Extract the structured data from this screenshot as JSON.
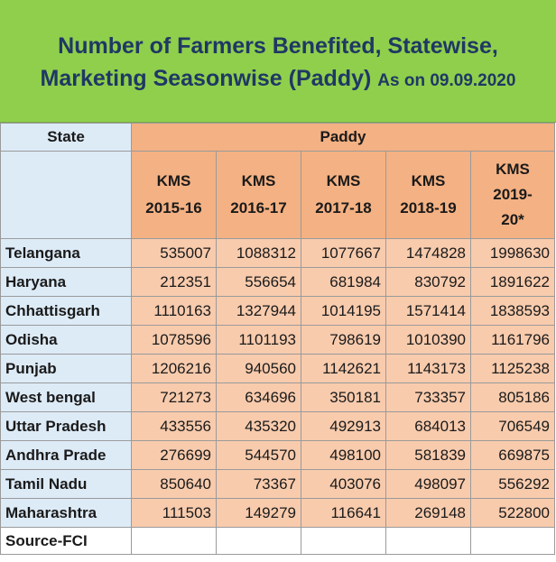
{
  "title": {
    "line1": "Number of Farmers Benefited, Statewise,",
    "line2": "Marketing Seasonwise (Paddy)",
    "as_on": "As on 09.09.2020"
  },
  "table": {
    "state_header": "State",
    "group_header": "Paddy",
    "seasons": [
      "KMS 2015-16",
      "KMS 2016-17",
      "KMS 2017-18",
      "KMS 2018-19",
      "KMS 2019-20*"
    ],
    "rows": [
      {
        "state": "Telangana",
        "values": [
          "535007",
          "1088312",
          "1077667",
          "1474828",
          "1998630"
        ]
      },
      {
        "state": "Haryana",
        "values": [
          "212351",
          "556654",
          "681984",
          "830792",
          "1891622"
        ]
      },
      {
        "state": "Chhattisgarh",
        "values": [
          "1110163",
          "1327944",
          "1014195",
          "1571414",
          "1838593"
        ]
      },
      {
        "state": "Odisha",
        "values": [
          "1078596",
          "1101193",
          "798619",
          "1010390",
          "1161796"
        ]
      },
      {
        "state": "Punjab",
        "values": [
          "1206216",
          "940560",
          "1142621",
          "1143173",
          "1125238"
        ]
      },
      {
        "state": "West bengal",
        "values": [
          "721273",
          "634696",
          "350181",
          "733357",
          "805186"
        ]
      },
      {
        "state": "Uttar Pradesh",
        "values": [
          "433556",
          "435320",
          "492913",
          "684013",
          "706549"
        ]
      },
      {
        "state": "Andhra Prade",
        "values": [
          "276699",
          "544570",
          "498100",
          "581839",
          "669875"
        ]
      },
      {
        "state": "Tamil Nadu",
        "values": [
          "850640",
          "73367",
          "403076",
          "498097",
          "556292"
        ]
      },
      {
        "state": "Maharashtra",
        "values": [
          "111503",
          "149279",
          "116641",
          "269148",
          "522800"
        ]
      }
    ],
    "source": "Source-FCI"
  },
  "colors": {
    "title_bg": "#8fcf4c",
    "title_text": "#1f3864",
    "state_bg": "#ddebf7",
    "header_bg": "#f4b183",
    "cell_bg": "#f8cbad"
  }
}
